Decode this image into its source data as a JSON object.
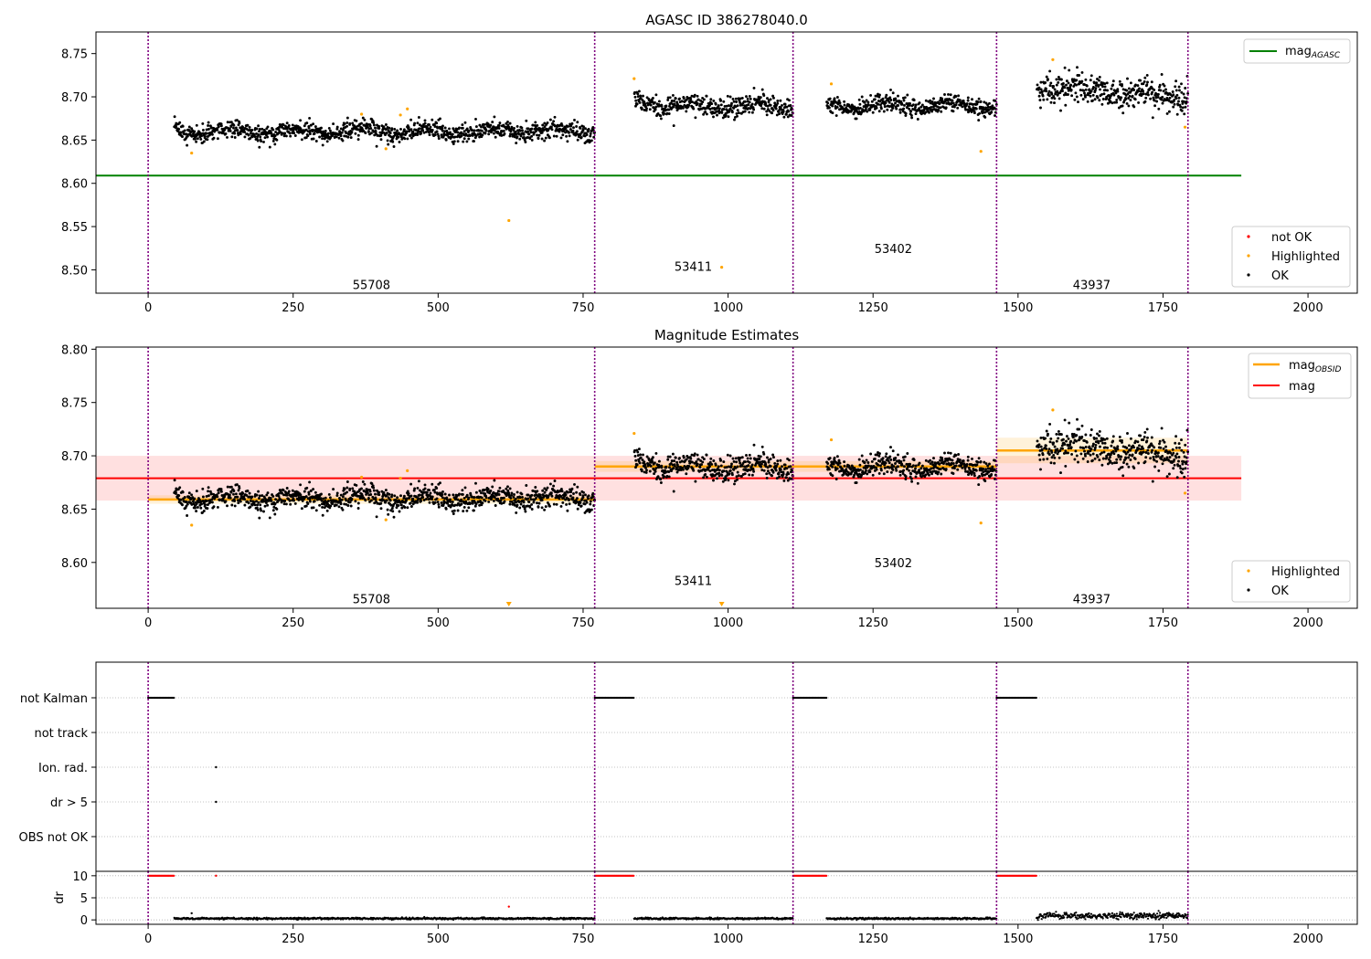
{
  "figure": {
    "title": "AGASC ID 386278040.0"
  },
  "chart_data": [
    {
      "id": "agasc-panel",
      "type": "scatter",
      "title": "",
      "xlabel": "",
      "ylabel": "",
      "xlim": [
        -90,
        2085
      ],
      "ylim": [
        8.473,
        8.775
      ],
      "xticks": [
        0,
        250,
        500,
        750,
        1000,
        1250,
        1500,
        1750,
        2000
      ],
      "yticks": [
        8.5,
        8.55,
        8.6,
        8.65,
        8.7,
        8.75
      ],
      "ytick_labels": [
        "8.50",
        "8.55",
        "8.60",
        "8.65",
        "8.70",
        "8.75"
      ],
      "obs_boundaries": [
        0,
        770,
        1112,
        1463,
        1793
      ],
      "obs_labels": [
        {
          "text": "55708",
          "x": 385,
          "y": 8.483
        },
        {
          "text": "53411",
          "x": 940,
          "y": 8.504
        },
        {
          "text": "53402",
          "x": 1285,
          "y": 8.525
        },
        {
          "text": "43937",
          "x": 1627,
          "y": 8.483
        }
      ],
      "mag_agasc": {
        "value": 8.609,
        "x_range": [
          -90,
          1885
        ],
        "color": "#008000"
      },
      "ok_segments": [
        {
          "x": [
            45,
            770
          ],
          "mean": 8.66,
          "scatter": 0.007
        },
        {
          "x": [
            838,
            1112
          ],
          "mean": 8.689,
          "scatter": 0.007
        },
        {
          "x": [
            1170,
            1463
          ],
          "mean": 8.69,
          "scatter": 0.007
        },
        {
          "x": [
            1532,
            1793
          ],
          "mean": 8.705,
          "scatter": 0.011
        }
      ],
      "highlighted_points": [
        {
          "x": 75,
          "y": 8.635
        },
        {
          "x": 368,
          "y": 8.68
        },
        {
          "x": 410,
          "y": 8.64
        },
        {
          "x": 435,
          "y": 8.679
        },
        {
          "x": 447,
          "y": 8.686
        },
        {
          "x": 622,
          "y": 8.557
        },
        {
          "x": 838,
          "y": 8.721
        },
        {
          "x": 989,
          "y": 8.503
        },
        {
          "x": 1178,
          "y": 8.715
        },
        {
          "x": 1436,
          "y": 8.637
        },
        {
          "x": 1560,
          "y": 8.743
        },
        {
          "x": 1788,
          "y": 8.665
        }
      ],
      "legend_upper": {
        "position": "top-right",
        "entries": [
          {
            "label": "mag",
            "sub": "AGASC",
            "color": "#008000"
          }
        ]
      },
      "legend_lower": {
        "position": "bottom-right",
        "entries": [
          {
            "label": "not OK",
            "color": "#ff0000"
          },
          {
            "label": "Highlighted",
            "color": "#ffa500"
          },
          {
            "label": "OK",
            "color": "#000000"
          }
        ]
      }
    },
    {
      "id": "estimates-panel",
      "type": "scatter",
      "title": "Magnitude Estimates",
      "xlabel": "",
      "ylabel": "",
      "xlim": [
        -90,
        2085
      ],
      "ylim": [
        8.557,
        8.802
      ],
      "xticks": [
        0,
        250,
        500,
        750,
        1000,
        1250,
        1500,
        1750,
        2000
      ],
      "yticks": [
        8.6,
        8.65,
        8.7,
        8.75,
        8.8
      ],
      "ytick_labels": [
        "8.60",
        "8.65",
        "8.70",
        "8.75",
        "8.80"
      ],
      "obs_boundaries": [
        0,
        770,
        1112,
        1463,
        1793
      ],
      "obs_labels": [
        {
          "text": "55708",
          "x": 385,
          "y": 8.566
        },
        {
          "text": "53411",
          "x": 940,
          "y": 8.583
        },
        {
          "text": "53402",
          "x": 1285,
          "y": 8.6
        },
        {
          "text": "43937",
          "x": 1627,
          "y": 8.566
        }
      ],
      "mag_overall": {
        "value": 8.679,
        "band": [
          8.658,
          8.7
        ],
        "x_range": [
          -90,
          1885
        ],
        "color": "#ff0000"
      },
      "mag_obsid": [
        {
          "x": [
            0,
            770
          ],
          "value": 8.659,
          "band": [
            8.655,
            8.663
          ]
        },
        {
          "x": [
            770,
            1112
          ],
          "value": 8.69,
          "band": [
            8.685,
            8.695
          ]
        },
        {
          "x": [
            1112,
            1463
          ],
          "value": 8.69,
          "band": [
            8.685,
            8.695
          ]
        },
        {
          "x": [
            1463,
            1793
          ],
          "value": 8.705,
          "band": [
            8.693,
            8.717
          ]
        }
      ],
      "ok_segments": [
        {
          "x": [
            45,
            770
          ],
          "mean": 8.66,
          "scatter": 0.007
        },
        {
          "x": [
            838,
            1112
          ],
          "mean": 8.689,
          "scatter": 0.007
        },
        {
          "x": [
            1170,
            1463
          ],
          "mean": 8.69,
          "scatter": 0.007
        },
        {
          "x": [
            1532,
            1793
          ],
          "mean": 8.705,
          "scatter": 0.011
        }
      ],
      "highlighted_points": [
        {
          "x": 75,
          "y": 8.635
        },
        {
          "x": 368,
          "y": 8.68
        },
        {
          "x": 410,
          "y": 8.64
        },
        {
          "x": 435,
          "y": 8.679
        },
        {
          "x": 447,
          "y": 8.686
        },
        {
          "x": 838,
          "y": 8.721
        },
        {
          "x": 1178,
          "y": 8.715
        },
        {
          "x": 1436,
          "y": 8.637
        },
        {
          "x": 1560,
          "y": 8.743
        },
        {
          "x": 1788,
          "y": 8.665
        }
      ],
      "off_scale_points": [
        {
          "x": 622
        },
        {
          "x": 989
        }
      ],
      "legend_upper": {
        "position": "top-right",
        "entries": [
          {
            "label": "mag",
            "sub": "OBSID",
            "color": "#ffa500"
          },
          {
            "label": "mag",
            "color": "#ff0000"
          }
        ]
      },
      "legend_lower": {
        "position": "bottom-right",
        "entries": [
          {
            "label": "Highlighted",
            "color": "#ffa500"
          },
          {
            "label": "OK",
            "color": "#000000"
          }
        ]
      }
    },
    {
      "id": "flags-panel",
      "type": "scatter",
      "title": "",
      "xlim": [
        -90,
        2085
      ],
      "obs_boundaries": [
        0,
        770,
        1112,
        1463,
        1793
      ],
      "flag_labels": [
        "not Kalman",
        "not track",
        "Ion. rad.",
        "dr > 5",
        "OBS not OK"
      ],
      "flag_points": {
        "not Kalman": [
          [
            0,
            45
          ],
          [
            770,
            838
          ],
          [
            1112,
            1170
          ],
          [
            1463,
            1532
          ]
        ],
        "not track": [],
        "Ion. rad.": [
          117
        ],
        "dr > 5": [
          117
        ],
        "OBS not OK": []
      }
    },
    {
      "id": "dr-panel",
      "type": "scatter",
      "xlabel": "",
      "ylabel": "dr",
      "xlim": [
        -90,
        2085
      ],
      "ylim": [
        -1,
        11
      ],
      "xticks": [
        0,
        250,
        500,
        750,
        1000,
        1250,
        1500,
        1750,
        2000
      ],
      "yticks": [
        0,
        5,
        10
      ],
      "obs_boundaries": [
        0,
        770,
        1112,
        1463,
        1793
      ],
      "clipped_ranges": [
        [
          0,
          45
        ],
        [
          770,
          838
        ],
        [
          1112,
          1170
        ],
        [
          1463,
          1532
        ]
      ],
      "clipped_value": 10,
      "dr_segments": [
        {
          "x": [
            45,
            770
          ],
          "mean": 0.3
        },
        {
          "x": [
            838,
            1112
          ],
          "mean": 0.3
        },
        {
          "x": [
            1170,
            1463
          ],
          "mean": 0.3
        },
        {
          "x": [
            1532,
            1793
          ],
          "mean": 0.9
        }
      ],
      "extra_points": [
        {
          "x": 117,
          "y": 10,
          "color": "#ff0000"
        },
        {
          "x": 622,
          "y": 3,
          "color": "#ff0000"
        },
        {
          "x": 75,
          "y": 1.5,
          "color": "#000000"
        }
      ]
    }
  ]
}
